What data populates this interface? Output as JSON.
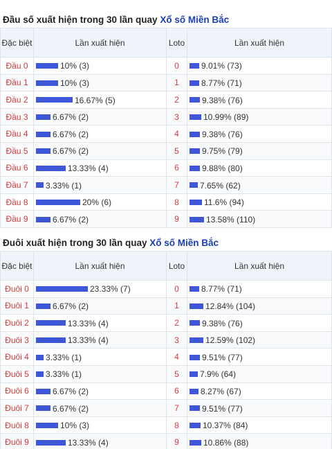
{
  "dau": {
    "title_prefix": "Đầu số xuất hiện trong 30 lần quay",
    "title_link": "Xổ số Miền Bắc",
    "headers": {
      "col1": "Đặc biệt",
      "col2": "Lần xuất hiện",
      "col3": "Loto",
      "col4": "Lần xuất hiện"
    },
    "rows": [
      {
        "label": "Đầu 0",
        "pct": "10% (3)",
        "pct_value": 10,
        "loto": "0",
        "loto_text": "9.01% (73)",
        "loto_value": 9.01
      },
      {
        "label": "Đầu 1",
        "pct": "10% (3)",
        "pct_value": 10,
        "loto": "1",
        "loto_text": "8.77% (71)",
        "loto_value": 8.77
      },
      {
        "label": "Đầu 2",
        "pct": "16.67% (5)",
        "pct_value": 16.67,
        "loto": "2",
        "loto_text": "9.38% (76)",
        "loto_value": 9.38
      },
      {
        "label": "Đầu 3",
        "pct": "6.67% (2)",
        "pct_value": 6.67,
        "loto": "3",
        "loto_text": "10.99% (89)",
        "loto_value": 10.99
      },
      {
        "label": "Đầu 4",
        "pct": "6.67% (2)",
        "pct_value": 6.67,
        "loto": "4",
        "loto_text": "9.38% (76)",
        "loto_value": 9.38
      },
      {
        "label": "Đầu 5",
        "pct": "6.67% (2)",
        "pct_value": 6.67,
        "loto": "5",
        "loto_text": "9.75% (79)",
        "loto_value": 9.75
      },
      {
        "label": "Đầu 6",
        "pct": "13.33% (4)",
        "pct_value": 13.33,
        "loto": "6",
        "loto_text": "9.88% (80)",
        "loto_value": 9.88
      },
      {
        "label": "Đầu 7",
        "pct": "3.33% (1)",
        "pct_value": 3.33,
        "loto": "7",
        "loto_text": "7.65% (62)",
        "loto_value": 7.65
      },
      {
        "label": "Đầu 8",
        "pct": "20% (6)",
        "pct_value": 20,
        "loto": "8",
        "loto_text": "11.6% (94)",
        "loto_value": 11.6
      },
      {
        "label": "Đầu 9",
        "pct": "6.67% (2)",
        "pct_value": 6.67,
        "loto": "9",
        "loto_text": "13.58% (110)",
        "loto_value": 13.58
      }
    ]
  },
  "duoi": {
    "title_prefix": "Đuôi xuất hiện trong 30 lần quay",
    "title_link": "Xổ số Miền Bắc",
    "headers": {
      "col1": "Đặc biệt",
      "col2": "Lần xuất hiện",
      "col3": "Loto",
      "col4": "Lần xuất hiện"
    },
    "rows": [
      {
        "label": "Đuôi 0",
        "pct": "23.33% (7)",
        "pct_value": 23.33,
        "loto": "0",
        "loto_text": "8.77% (71)",
        "loto_value": 8.77
      },
      {
        "label": "Đuôi 1",
        "pct": "6.67% (2)",
        "pct_value": 6.67,
        "loto": "1",
        "loto_text": "12.84% (104)",
        "loto_value": 12.84
      },
      {
        "label": "Đuôi 2",
        "pct": "13.33% (4)",
        "pct_value": 13.33,
        "loto": "2",
        "loto_text": "9.38% (76)",
        "loto_value": 9.38
      },
      {
        "label": "Đuôi 3",
        "pct": "13.33% (4)",
        "pct_value": 13.33,
        "loto": "3",
        "loto_text": "12.59% (102)",
        "loto_value": 12.59
      },
      {
        "label": "Đuôi 4",
        "pct": "3.33% (1)",
        "pct_value": 3.33,
        "loto": "4",
        "loto_text": "9.51% (77)",
        "loto_value": 9.51
      },
      {
        "label": "Đuôi 5",
        "pct": "3.33% (1)",
        "pct_value": 3.33,
        "loto": "5",
        "loto_text": "7.9% (64)",
        "loto_value": 7.9
      },
      {
        "label": "Đuôi 6",
        "pct": "6.67% (2)",
        "pct_value": 6.67,
        "loto": "6",
        "loto_text": "8.27% (67)",
        "loto_value": 8.27
      },
      {
        "label": "Đuôi 7",
        "pct": "6.67% (2)",
        "pct_value": 6.67,
        "loto": "7",
        "loto_text": "9.51% (77)",
        "loto_value": 9.51
      },
      {
        "label": "Đuôi 8",
        "pct": "10% (3)",
        "pct_value": 10,
        "loto": "8",
        "loto_text": "10.37% (84)",
        "loto_value": 10.37
      },
      {
        "label": "Đuôi 9",
        "pct": "13.33% (4)",
        "pct_value": 13.33,
        "loto": "9",
        "loto_text": "10.86% (88)",
        "loto_value": 10.86
      }
    ]
  },
  "colors": {
    "label_red": "#d43a3a",
    "bar_blue": "#3e57d8",
    "link_blue": "#1a3fb4",
    "header_bg": "#eef4fa"
  }
}
